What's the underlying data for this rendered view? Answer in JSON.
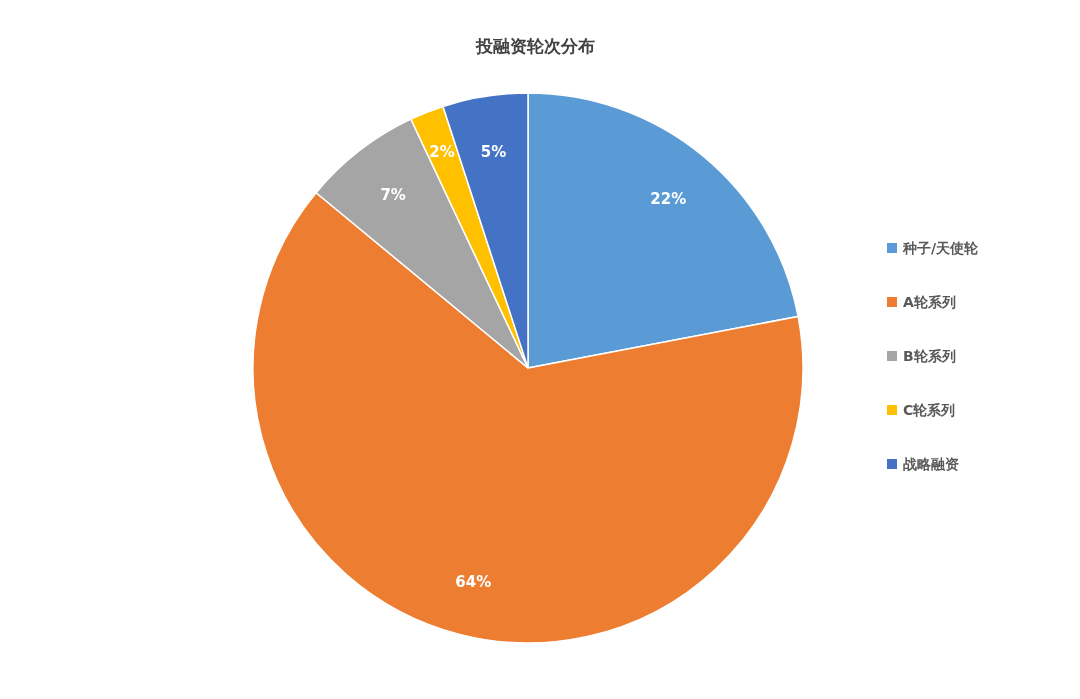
{
  "chart_data": {
    "type": "pie",
    "title": "投融资轮次分布",
    "categories": [
      "种子/天使轮",
      "A轮系列",
      "B轮系列",
      "C轮系列",
      "战略融资"
    ],
    "values": [
      22,
      64,
      7,
      2,
      5
    ],
    "colors": [
      "#5b9bd5",
      "#ed7d31",
      "#a5a5a5",
      "#ffc000",
      "#4472c4"
    ],
    "value_labels": [
      "22%",
      "64%",
      "7%",
      "2%",
      "5%"
    ],
    "legend": "right"
  }
}
